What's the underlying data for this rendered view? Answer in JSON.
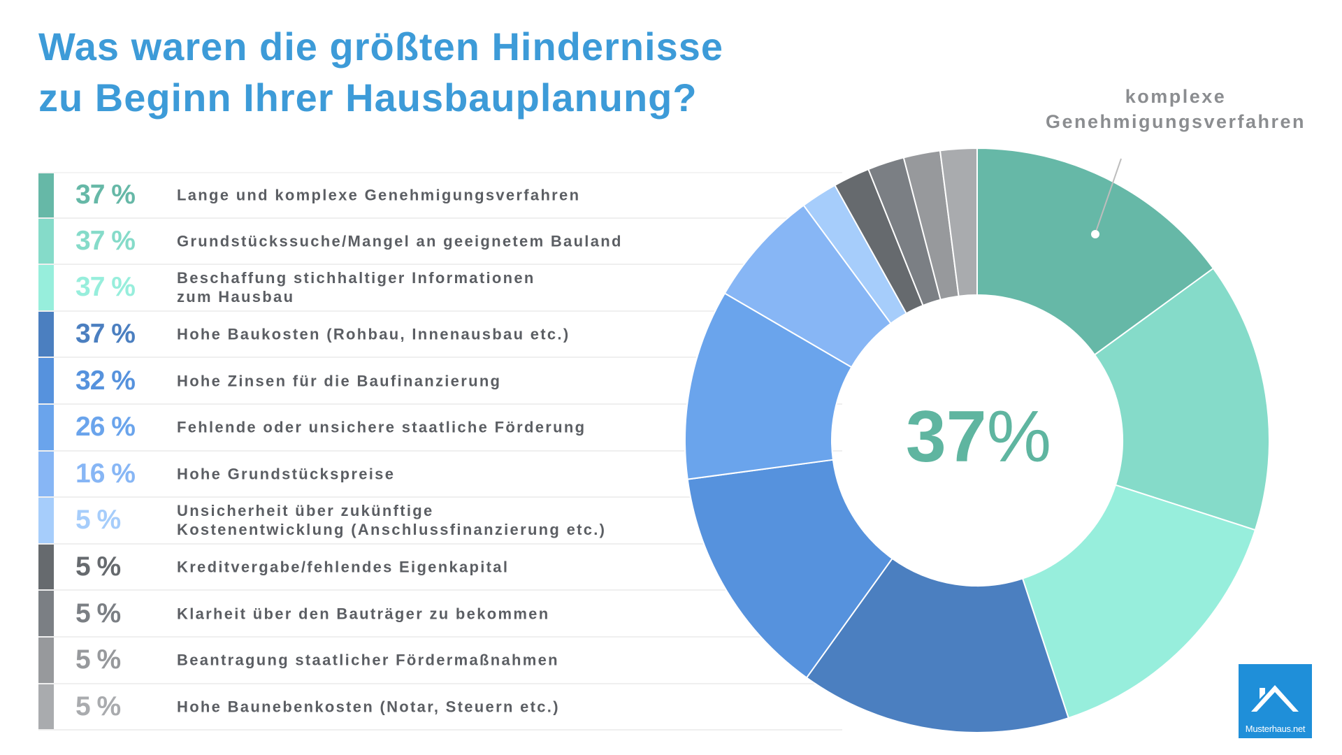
{
  "title": {
    "line1": "Was waren die größten Hindernisse",
    "line2": "zu Beginn Ihrer Hausbauplanung?"
  },
  "chart_data": {
    "type": "pie",
    "variant": "donut",
    "title": "Was waren die größten Hindernisse zu Beginn Ihrer Hausbauplanung?",
    "unit": "%",
    "categories": [
      "Lange und komplexe Genehmigungsverfahren",
      "Grundstückssuche/Mangel an geeignetem Bauland",
      "Beschaffung stichhaltiger Informationen zum Hausbau",
      "Hohe Baukosten (Rohbau, Innenausbau etc.)",
      "Hohe Zinsen für die Baufinanzierung",
      "Fehlende oder unsichere staatliche Förderung",
      "Hohe Grundstückspreise",
      "Unsicherheit über zukünftige Kostenentwicklung (Anschlussfinanzierung etc.)",
      "Kreditvergabe/fehlendes Eigenkapital",
      "Klarheit über den Bauträger zu bekommen",
      "Beantragung staatlicher Fördermaßnahmen",
      "Hohe Baunebenkosten (Notar, Steuern etc.)"
    ],
    "values": [
      37,
      37,
      37,
      37,
      32,
      26,
      16,
      5,
      5,
      5,
      5,
      5
    ],
    "colors": [
      "#66b8a7",
      "#85dbc9",
      "#97eedc",
      "#4b7fc0",
      "#5692dd",
      "#6aa4ec",
      "#87b6f5",
      "#a6cdfb",
      "#666a6e",
      "#7b7f84",
      "#97999c",
      "#a9abae"
    ],
    "legend": "left",
    "rows": [
      {
        "pct": "37 %",
        "lines": [
          "Lange und komplexe Genehmigungsverfahren"
        ]
      },
      {
        "pct": "37 %",
        "lines": [
          "Grundstückssuche/Mangel an geeignetem Bauland"
        ]
      },
      {
        "pct": "37 %",
        "lines": [
          "Beschaffung stichhaltiger Informationen",
          "zum Hausbau"
        ]
      },
      {
        "pct": "37 %",
        "lines": [
          "Hohe Baukosten (Rohbau, Innenausbau etc.)"
        ]
      },
      {
        "pct": "32 %",
        "lines": [
          "Hohe Zinsen für die Baufinanzierung"
        ]
      },
      {
        "pct": "26 %",
        "lines": [
          "Fehlende oder unsichere staatliche Förderung"
        ]
      },
      {
        "pct": "16 %",
        "lines": [
          "Hohe Grundstückspreise"
        ]
      },
      {
        "pct": "5 %",
        "lines": [
          "Unsicherheit über zukünftige",
          "Kostenentwicklung (Anschlussfinanzierung etc.)"
        ]
      },
      {
        "pct": "5 %",
        "lines": [
          "Kreditvergabe/fehlendes Eigenkapital"
        ]
      },
      {
        "pct": "5 %",
        "lines": [
          "Klarheit über den Bauträger zu bekommen"
        ]
      },
      {
        "pct": "5 %",
        "lines": [
          "Beantragung staatlicher Fördermaßnahmen"
        ]
      },
      {
        "pct": "5 %",
        "lines": [
          "Hohe Baunebenkosten (Notar, Steuern etc.)"
        ]
      }
    ],
    "highlight": {
      "number": "37",
      "unit": "%",
      "callout_line1": "komplexe",
      "callout_line2": "Genehmigungsverfahren"
    }
  },
  "logo": {
    "text": "Musterhaus.net"
  }
}
